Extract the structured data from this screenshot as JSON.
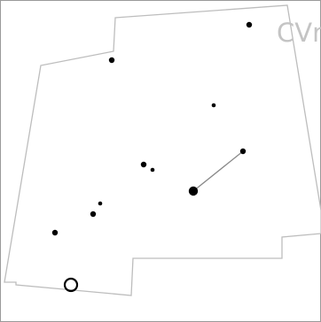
{
  "map": {
    "neighbor_label": "CVn",
    "stars": [
      {
        "id": "top-right",
        "mag": 2
      },
      {
        "id": "upper-left",
        "mag": 2
      },
      {
        "id": "mid-upper",
        "mag": 1
      },
      {
        "id": "right",
        "mag": 2
      },
      {
        "id": "center-a",
        "mag": 2
      },
      {
        "id": "center-b",
        "mag": 1
      },
      {
        "id": "bright",
        "mag": 3
      },
      {
        "id": "left-a",
        "mag": 1
      },
      {
        "id": "left-b",
        "mag": 2
      },
      {
        "id": "far-left",
        "mag": 2
      }
    ],
    "asterism_lines": [
      [
        "right",
        "bright"
      ]
    ],
    "cluster_marker": true
  },
  "colors": {
    "boundary": "#bdbdbd",
    "label": "#c4c4c4",
    "star": "#000000",
    "asterism": "#888888"
  }
}
